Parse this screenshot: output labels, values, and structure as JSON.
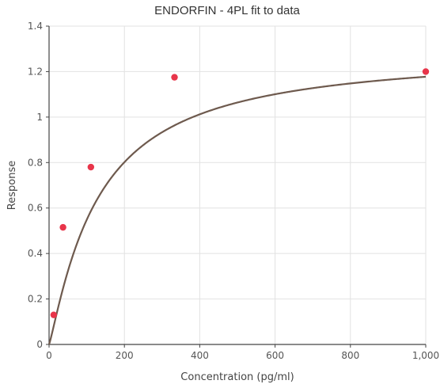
{
  "chart_data": {
    "type": "scatter",
    "title": "ENDORFIN - 4PL fit to data",
    "xlabel": "Concentration (pg/ml)",
    "ylabel": "Response",
    "xlim": [
      0,
      1000
    ],
    "ylim": [
      0,
      1.4
    ],
    "x_ticks": [
      0,
      200,
      400,
      600,
      800,
      1000
    ],
    "x_tick_labels": [
      "0",
      "200",
      "400",
      "600",
      "800",
      "1,000"
    ],
    "y_ticks": [
      0,
      0.2,
      0.4,
      0.6,
      0.8,
      1.0,
      1.2,
      1.4
    ],
    "y_tick_labels": [
      "0",
      "0.2",
      "0.4",
      "0.6",
      "0.8",
      "1",
      "1.2",
      "1.4"
    ],
    "grid": true,
    "legend": "none",
    "points": {
      "x": [
        12.3,
        37,
        111,
        333,
        1000
      ],
      "y": [
        0.13,
        0.515,
        0.78,
        1.175,
        1.2
      ],
      "color": "#e8354a"
    },
    "fit_curve": {
      "model": "4PL",
      "color": "#6e5a4e",
      "params": {
        "a": 0,
        "b": 1.15,
        "c": 130,
        "d": 1.29
      }
    }
  }
}
